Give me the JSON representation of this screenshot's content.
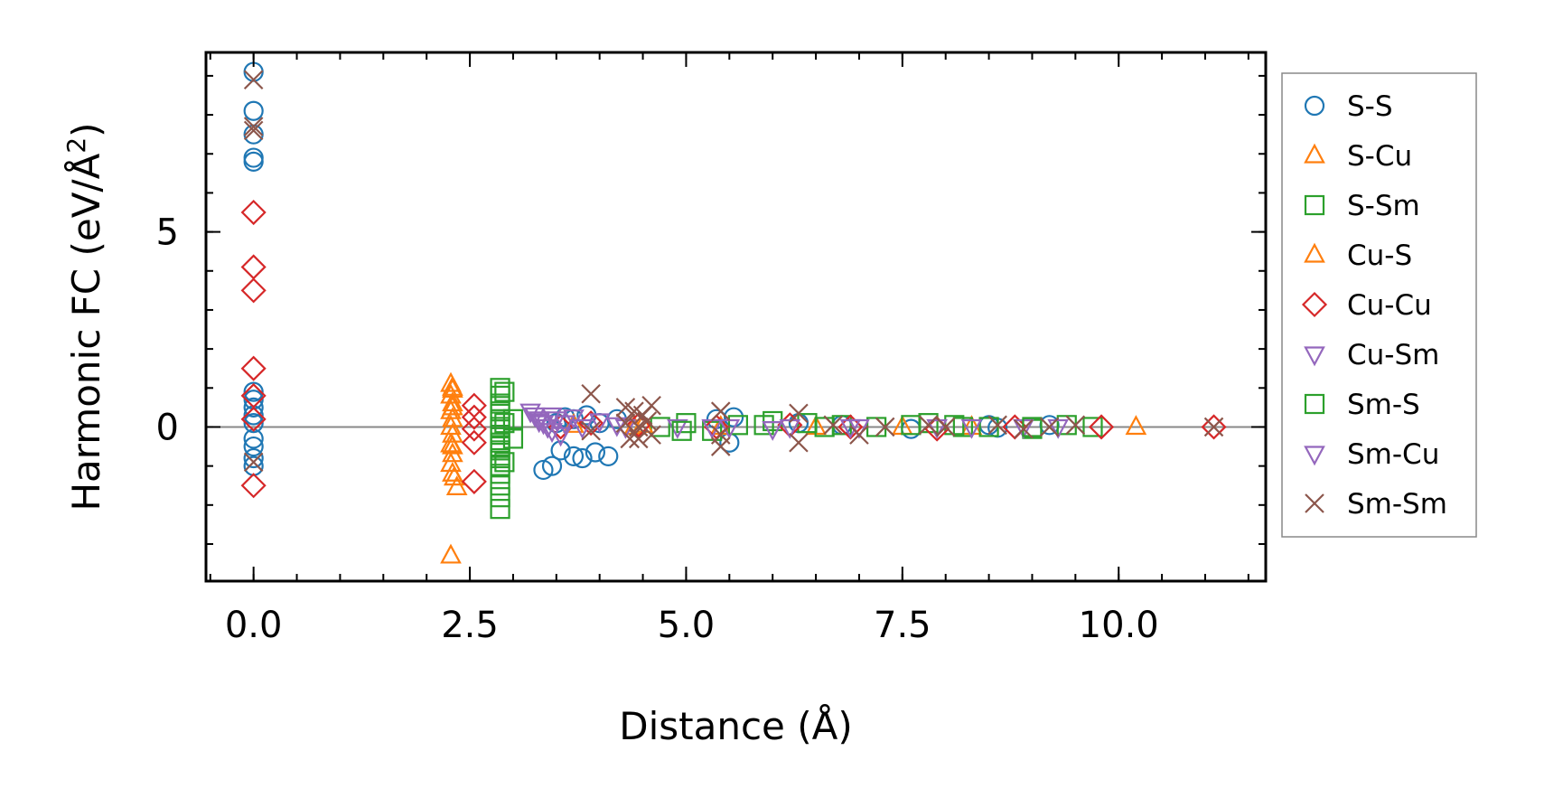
{
  "chart_data": {
    "type": "scatter",
    "title": "",
    "xlabel": "Distance (Å)",
    "ylabel_main": "Harmonic FC (eV/Å",
    "ylabel_sup": "2",
    "ylabel_close": ")",
    "xlim": [
      -0.55,
      11.7
    ],
    "ylim": [
      -3.95,
      9.6
    ],
    "xticks": [
      0.0,
      2.5,
      5.0,
      7.5,
      10.0
    ],
    "xtick_labels": [
      "0.0",
      "2.5",
      "5.0",
      "7.5",
      "10.0"
    ],
    "xticks_minor": [
      -0.5,
      0.0,
      0.5,
      1.0,
      1.5,
      2.0,
      2.5,
      3.0,
      3.5,
      4.0,
      4.5,
      5.0,
      5.5,
      6.0,
      6.5,
      7.0,
      7.5,
      8.0,
      8.5,
      9.0,
      9.5,
      10.0,
      10.5,
      11.0,
      11.5
    ],
    "yticks": [
      0,
      5
    ],
    "ytick_labels": [
      "0",
      "5"
    ],
    "yticks_minor": [
      -3,
      -2,
      -1,
      0,
      1,
      2,
      3,
      4,
      5,
      6,
      7,
      8,
      9
    ],
    "zero_line": 0,
    "legend_position": "outside-right",
    "series": [
      {
        "name": "S-S",
        "marker": "circle",
        "color": "#1f77b4",
        "points": [
          [
            0,
            9.1
          ],
          [
            0,
            8.1
          ],
          [
            0,
            7.5
          ],
          [
            0,
            6.9
          ],
          [
            0,
            6.8
          ],
          [
            0,
            0.9
          ],
          [
            0,
            0.7
          ],
          [
            0,
            0.5
          ],
          [
            0,
            0.3
          ],
          [
            0,
            0.1
          ],
          [
            0,
            -0.3
          ],
          [
            0,
            -0.5
          ],
          [
            0,
            -0.8
          ],
          [
            0,
            -1.0
          ],
          [
            3.35,
            -1.1
          ],
          [
            3.45,
            -1.0
          ],
          [
            3.55,
            -0.6
          ],
          [
            3.7,
            -0.75
          ],
          [
            3.8,
            -0.8
          ],
          [
            3.95,
            -0.65
          ],
          [
            4.1,
            -0.75
          ],
          [
            3.6,
            0.25
          ],
          [
            3.7,
            0.2
          ],
          [
            3.85,
            0.3
          ],
          [
            4.0,
            0.1
          ],
          [
            4.2,
            0.2
          ],
          [
            3.5,
            0.1
          ],
          [
            5.5,
            -0.4
          ],
          [
            5.55,
            0.25
          ],
          [
            5.35,
            0.2
          ],
          [
            6.3,
            0.1
          ],
          [
            6.8,
            0.05
          ],
          [
            7.6,
            -0.05
          ],
          [
            8.5,
            0.05
          ],
          [
            8.6,
            -0.02
          ],
          [
            9.2,
            0.05
          ]
        ]
      },
      {
        "name": "S-Cu",
        "marker": "triangle-up",
        "color": "#ff7f0e",
        "points": [
          [
            2.28,
            1.1
          ],
          [
            2.3,
            0.95
          ],
          [
            2.28,
            0.8
          ],
          [
            2.3,
            0.6
          ],
          [
            2.28,
            0.4
          ],
          [
            2.3,
            0.2
          ],
          [
            2.28,
            0.0
          ],
          [
            2.3,
            -0.2
          ],
          [
            2.28,
            -0.45
          ],
          [
            2.3,
            -0.7
          ],
          [
            2.28,
            -0.95
          ],
          [
            2.32,
            -1.3
          ],
          [
            2.35,
            -1.55
          ],
          [
            2.28,
            -3.3
          ],
          [
            3.7,
            0.05
          ],
          [
            4.4,
            0.0
          ],
          [
            5.4,
            0.0
          ],
          [
            6.5,
            0.0
          ],
          [
            8.3,
            0.0
          ],
          [
            10.2,
            0.0
          ]
        ]
      },
      {
        "name": "S-Sm",
        "marker": "square",
        "color": "#2ca02c",
        "points": [
          [
            2.85,
            1.0
          ],
          [
            2.85,
            0.8
          ],
          [
            2.85,
            0.6
          ],
          [
            2.85,
            0.4
          ],
          [
            2.85,
            0.2
          ],
          [
            2.85,
            0.0
          ],
          [
            2.85,
            -0.2
          ],
          [
            2.85,
            -0.4
          ],
          [
            2.85,
            -0.6
          ],
          [
            2.85,
            -0.8
          ],
          [
            2.85,
            -1.0
          ],
          [
            2.85,
            -1.2
          ],
          [
            2.85,
            -1.5
          ],
          [
            2.85,
            -1.8
          ],
          [
            2.85,
            -2.1
          ],
          [
            2.85,
            -0.5
          ],
          [
            3.0,
            0.2
          ],
          [
            3.0,
            -0.3
          ],
          [
            4.7,
            0.0
          ],
          [
            5.0,
            0.1
          ],
          [
            5.3,
            -0.1
          ],
          [
            5.6,
            0.05
          ],
          [
            6.0,
            0.15
          ],
          [
            6.4,
            0.1
          ],
          [
            6.8,
            0.05
          ],
          [
            7.2,
            0.0
          ],
          [
            7.8,
            0.1
          ],
          [
            8.1,
            0.05
          ],
          [
            8.5,
            0.0
          ],
          [
            9.0,
            -0.05
          ],
          [
            9.4,
            0.05
          ],
          [
            9.7,
            0.0
          ]
        ]
      },
      {
        "name": "Cu-S",
        "marker": "triangle-up",
        "color": "#ff7f0e",
        "points": [
          [
            2.3,
            1.0
          ],
          [
            2.3,
            0.5
          ],
          [
            2.3,
            -0.5
          ],
          [
            2.3,
            -1.2
          ],
          [
            4.5,
            0.05
          ],
          [
            7.5,
            0.0
          ]
        ]
      },
      {
        "name": "Cu-Cu",
        "marker": "diamond",
        "color": "#d62728",
        "points": [
          [
            0,
            5.5
          ],
          [
            0,
            4.1
          ],
          [
            0,
            3.5
          ],
          [
            0,
            1.5
          ],
          [
            0,
            0.8
          ],
          [
            0,
            0.2
          ],
          [
            0,
            -1.5
          ],
          [
            2.55,
            0.55
          ],
          [
            2.55,
            0.25
          ],
          [
            2.55,
            -0.05
          ],
          [
            2.55,
            -0.4
          ],
          [
            2.55,
            -1.4
          ],
          [
            3.55,
            0.0
          ],
          [
            3.9,
            0.1
          ],
          [
            4.45,
            0.05
          ],
          [
            5.35,
            0.0
          ],
          [
            6.2,
            0.05
          ],
          [
            6.9,
            0.0
          ],
          [
            7.9,
            -0.05
          ],
          [
            8.8,
            0.0
          ],
          [
            9.8,
            0.0
          ],
          [
            11.1,
            0.0
          ]
        ]
      },
      {
        "name": "Cu-Sm",
        "marker": "triangle-down",
        "color": "#9467bd",
        "points": [
          [
            3.2,
            0.4
          ],
          [
            3.25,
            0.3
          ],
          [
            3.3,
            0.2
          ],
          [
            3.35,
            0.1
          ],
          [
            3.4,
            0.0
          ],
          [
            3.45,
            -0.1
          ],
          [
            3.5,
            0.2
          ],
          [
            3.6,
            0.1
          ],
          [
            3.7,
            0.25
          ],
          [
            3.8,
            0.0
          ],
          [
            4.0,
            0.15
          ],
          [
            4.2,
            0.05
          ],
          [
            4.9,
            0.0
          ],
          [
            5.3,
            0.0
          ],
          [
            6.2,
            0.0
          ],
          [
            7.0,
            0.0
          ],
          [
            7.9,
            0.0
          ],
          [
            8.9,
            0.0
          ]
        ]
      },
      {
        "name": "Sm-S",
        "marker": "square",
        "color": "#2ca02c",
        "points": [
          [
            2.9,
            0.9
          ],
          [
            2.9,
            -0.9
          ],
          [
            2.9,
            0.1
          ],
          [
            4.95,
            -0.1
          ],
          [
            5.9,
            0.05
          ],
          [
            6.6,
            0.0
          ],
          [
            7.6,
            0.05
          ],
          [
            8.2,
            0.0
          ],
          [
            9.0,
            0.0
          ]
        ]
      },
      {
        "name": "Sm-Cu",
        "marker": "triangle-down",
        "color": "#9467bd",
        "points": [
          [
            3.3,
            0.15
          ],
          [
            3.45,
            0.3
          ],
          [
            3.55,
            -0.2
          ],
          [
            4.3,
            0.0
          ],
          [
            5.5,
            0.0
          ],
          [
            6.0,
            -0.05
          ],
          [
            6.9,
            0.0
          ],
          [
            8.3,
            0.0
          ],
          [
            9.3,
            0.0
          ]
        ]
      },
      {
        "name": "Sm-Sm",
        "marker": "x",
        "color": "#8c564b",
        "points": [
          [
            0,
            8.9
          ],
          [
            0,
            7.7
          ],
          [
            0,
            7.6
          ],
          [
            0,
            -0.9
          ],
          [
            3.9,
            0.85
          ],
          [
            3.9,
            -0.1
          ],
          [
            4.3,
            0.5
          ],
          [
            4.3,
            0.1
          ],
          [
            4.35,
            -0.3
          ],
          [
            4.4,
            0.4
          ],
          [
            4.45,
            0.0
          ],
          [
            4.45,
            -0.3
          ],
          [
            4.5,
            0.3
          ],
          [
            4.55,
            0.15
          ],
          [
            4.6,
            -0.2
          ],
          [
            4.6,
            0.55
          ],
          [
            5.4,
            0.4
          ],
          [
            5.4,
            -0.2
          ],
          [
            5.4,
            -0.5
          ],
          [
            6.3,
            0.35
          ],
          [
            6.3,
            -0.4
          ],
          [
            6.7,
            0.05
          ],
          [
            7.0,
            -0.2
          ],
          [
            7.3,
            0.0
          ],
          [
            7.8,
            0.05
          ],
          [
            8.0,
            0.0
          ],
          [
            8.6,
            0.05
          ],
          [
            8.9,
            -0.05
          ],
          [
            9.2,
            0.0
          ],
          [
            9.5,
            0.05
          ],
          [
            11.1,
            0.0
          ]
        ]
      }
    ]
  }
}
